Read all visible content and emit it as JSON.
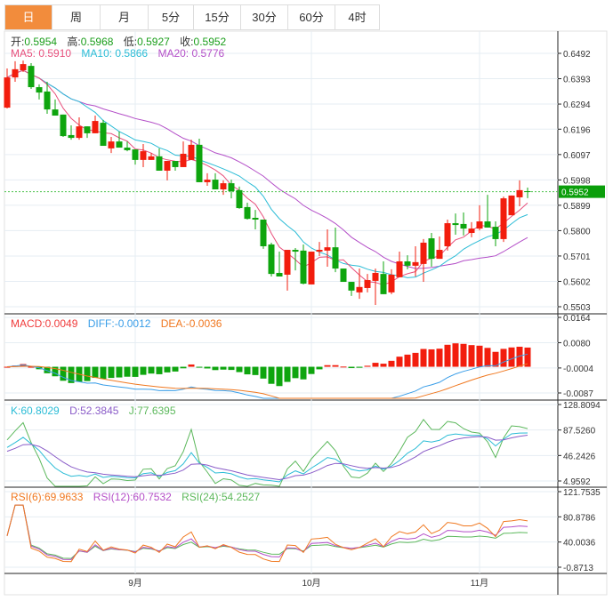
{
  "tabs": [
    {
      "label": "日",
      "active": true
    },
    {
      "label": "周"
    },
    {
      "label": "月"
    },
    {
      "label": "5分"
    },
    {
      "label": "15分"
    },
    {
      "label": "30分"
    },
    {
      "label": "60分"
    },
    {
      "label": "4时"
    }
  ],
  "ohlc_info": {
    "open_label": "开:",
    "open": "0.5954",
    "high_label": "高:",
    "high": "0.5968",
    "low_label": "低:",
    "low": "0.5927",
    "close_label": "收:",
    "close": "0.5952"
  },
  "ma_info": {
    "ma5": "MA5: 0.5910",
    "ma10": "MA10: 0.5866",
    "ma20": "MA20: 0.5776"
  },
  "macd_info": {
    "macd": "MACD:0.0049",
    "diff": "DIFF:-0.0012",
    "dea": "DEA:-0.0036"
  },
  "kdj_info": {
    "k": "K:60.8029",
    "d": "D:52.3845",
    "j": "J:77.6395"
  },
  "rsi_info": {
    "rsi6": "RSI(6):69.9633",
    "rsi12": "RSI(12):60.7532",
    "rsi24": "RSI(24):54.2527"
  },
  "colors": {
    "up": "#f21d0d",
    "down": "#0ea50e",
    "ma5": "#e8507c",
    "ma10": "#2bbcd6",
    "ma20": "#b44fc8",
    "diff": "#3a9ee8",
    "dea": "#f07820",
    "tab_active": "#f28c3c"
  },
  "chart_data": {
    "type": "candlestick",
    "current_price": "0.5952",
    "price_axis": {
      "ticks": [
        "0.6492",
        "0.6393",
        "0.6294",
        "0.6196",
        "0.6097",
        "0.5998",
        "0.5899",
        "0.5800",
        "0.5701",
        "0.5602",
        "0.5503"
      ],
      "range": [
        0.5503,
        0.6492
      ]
    },
    "macd_axis": {
      "ticks": [
        "0.0164",
        "0.0080",
        "-0.0004",
        "-0.0087"
      ],
      "range": [
        -0.0087,
        0.0164
      ]
    },
    "kdj_axis": {
      "ticks": [
        "128.8094",
        "87.5260",
        "46.2426",
        "4.9592"
      ],
      "range": [
        4.9592,
        128.8094
      ]
    },
    "rsi_axis": {
      "ticks": [
        "121.7535",
        "80.8786",
        "40.0036",
        "-0.8713"
      ],
      "range": [
        -0.8713,
        121.7535
      ]
    },
    "x_labels": [
      {
        "label": "9月",
        "index": 16
      },
      {
        "label": "10月",
        "index": 38
      },
      {
        "label": "11月",
        "index": 59
      }
    ],
    "candles": [
      [
        0.628,
        0.6433,
        0.6277,
        0.6398
      ],
      [
        0.6398,
        0.6461,
        0.6381,
        0.643
      ],
      [
        0.6426,
        0.6464,
        0.6419,
        0.645
      ],
      [
        0.6443,
        0.6454,
        0.6353,
        0.636
      ],
      [
        0.636,
        0.6371,
        0.6312,
        0.6339
      ],
      [
        0.6343,
        0.6381,
        0.6256,
        0.6273
      ],
      [
        0.6273,
        0.6312,
        0.6249,
        0.6249
      ],
      [
        0.6253,
        0.6253,
        0.6166,
        0.6169
      ],
      [
        0.6173,
        0.6211,
        0.6155,
        0.6162
      ],
      [
        0.6162,
        0.6242,
        0.6155,
        0.6207
      ],
      [
        0.6207,
        0.6207,
        0.6162,
        0.618
      ],
      [
        0.618,
        0.6249,
        0.618,
        0.6228
      ],
      [
        0.6221,
        0.6232,
        0.6131,
        0.6131
      ],
      [
        0.6121,
        0.6166,
        0.6103,
        0.6148
      ],
      [
        0.6148,
        0.6187,
        0.6124,
        0.6124
      ],
      [
        0.6124,
        0.6148,
        0.611,
        0.6114
      ],
      [
        0.6117,
        0.6117,
        0.6058,
        0.6076
      ],
      [
        0.6076,
        0.6138,
        0.6048,
        0.611
      ],
      [
        0.6076,
        0.6103,
        0.6076,
        0.609
      ],
      [
        0.609,
        0.6121,
        0.6034,
        0.6034
      ],
      [
        0.6034,
        0.6072,
        0.5996,
        0.6072
      ],
      [
        0.6072,
        0.6072,
        0.6034,
        0.6048
      ],
      [
        0.6048,
        0.6148,
        0.6048,
        0.61
      ],
      [
        0.6076,
        0.6155,
        0.6076,
        0.6135
      ],
      [
        0.6135,
        0.6159,
        0.5989,
        0.5989
      ],
      [
        0.5989,
        0.6024,
        0.5975,
        0.5999
      ],
      [
        0.5999,
        0.6024,
        0.5961,
        0.5961
      ],
      [
        0.5961,
        0.5996,
        0.594,
        0.5985
      ],
      [
        0.5985,
        0.5999,
        0.5926,
        0.5954
      ],
      [
        0.5958,
        0.5972,
        0.5885,
        0.5888
      ],
      [
        0.5892,
        0.5909,
        0.5843,
        0.5846
      ],
      [
        0.585,
        0.5881,
        0.5805,
        0.5843
      ],
      [
        0.5843,
        0.5843,
        0.5729,
        0.5739
      ],
      [
        0.5746,
        0.5753,
        0.5621,
        0.5631
      ],
      [
        0.5635,
        0.5718,
        0.5621,
        0.5621
      ],
      [
        0.5628,
        0.5725,
        0.5566,
        0.5725
      ],
      [
        0.5725,
        0.5732,
        0.5645,
        0.5718
      ],
      [
        0.5722,
        0.5746,
        0.559,
        0.5593
      ],
      [
        0.559,
        0.5718,
        0.559,
        0.5718
      ],
      [
        0.5718,
        0.5756,
        0.5701,
        0.5725
      ],
      [
        0.5722,
        0.5805,
        0.5659,
        0.5735
      ],
      [
        0.5735,
        0.5812,
        0.5638,
        0.5652
      ],
      [
        0.5652,
        0.5652,
        0.56,
        0.56
      ],
      [
        0.56,
        0.56,
        0.5545,
        0.5566
      ],
      [
        0.5559,
        0.5652,
        0.5534,
        0.558
      ],
      [
        0.5576,
        0.5631,
        0.5559,
        0.5607
      ],
      [
        0.5604,
        0.5652,
        0.551,
        0.5635
      ],
      [
        0.5631,
        0.568,
        0.5552,
        0.5552
      ],
      [
        0.5559,
        0.5649,
        0.5552,
        0.5628
      ],
      [
        0.5618,
        0.5718,
        0.5618,
        0.568
      ],
      [
        0.568,
        0.5704,
        0.5649,
        0.5663
      ],
      [
        0.5663,
        0.5739,
        0.5621,
        0.5677
      ],
      [
        0.567,
        0.5767,
        0.56,
        0.5753
      ],
      [
        0.577,
        0.5791,
        0.5659,
        0.569
      ],
      [
        0.569,
        0.5777,
        0.569,
        0.5725
      ],
      [
        0.5739,
        0.5843,
        0.5722,
        0.5829
      ],
      [
        0.5829,
        0.5867,
        0.5784,
        0.5822
      ],
      [
        0.5826,
        0.5871,
        0.5781,
        0.5808
      ],
      [
        0.5791,
        0.5833,
        0.5774,
        0.5808
      ],
      [
        0.5808,
        0.5899,
        0.5801,
        0.5836
      ],
      [
        0.5836,
        0.594,
        0.5812,
        0.5812
      ],
      [
        0.5815,
        0.5836,
        0.5739,
        0.5767
      ],
      [
        0.5767,
        0.5933,
        0.5756,
        0.5926
      ],
      [
        0.586,
        0.5937,
        0.586,
        0.5937
      ],
      [
        0.593,
        0.5996,
        0.5895,
        0.5958
      ],
      [
        0.5954,
        0.5968,
        0.5927,
        0.5952
      ]
    ]
  }
}
